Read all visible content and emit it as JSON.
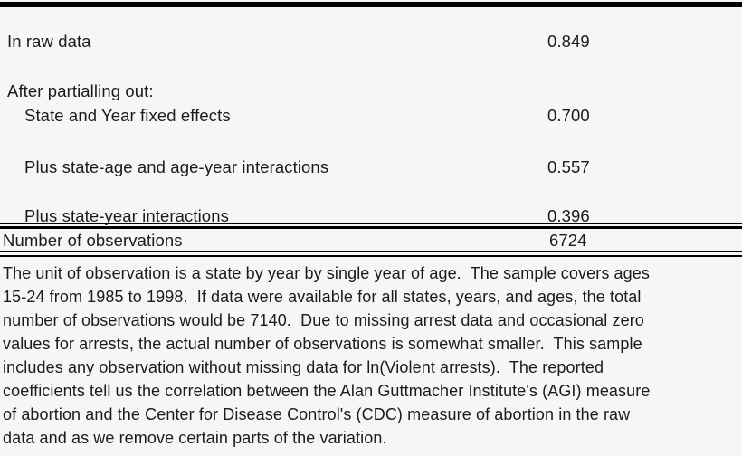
{
  "page": {
    "background_color": "#f6f6f6",
    "text_color": "#1b1b1b",
    "rule_color": "#000000"
  },
  "table": {
    "rows": [
      {
        "label": "In raw data",
        "value": "0.849",
        "indent": false
      },
      {
        "label": "After partialling out:",
        "value": "",
        "indent": false
      },
      {
        "label": "State and Year fixed effects",
        "value": "0.700",
        "indent": true
      },
      {
        "label": "Plus state-age and age-year interactions",
        "value": "0.557",
        "indent": true
      },
      {
        "label": "Plus state-year interactions",
        "value": "0.396",
        "indent": true
      },
      {
        "label": "Number of observations",
        "value": "6724",
        "indent": false
      }
    ]
  },
  "note": {
    "full_text": "The unit of observation is a state by year by single year of age.  The sample covers ages 15-24 from 1985 to 1998.  If data were available for all states, years, and ages, the total number of observations would be 7140.  Due to missing arrest data and occasional zero values for arrests, the actual number of observations is somewhat smaller.  This sample includes any observation without missing data for ln(Violent arrests).  The reported coefficients tell us the correlation between the Alan Guttmacher Institute's (AGI) measure of abortion and the Center for Disease Control's (CDC) measure of abortion in the raw data and as we remove certain parts of the variation.",
    "lines": [
      "The unit of observation is a state by year by single year of age.  The sample covers ages",
      "15-24 from 1985 to 1998.  If data were available for all states, years, and ages, the total",
      "number of observations would be 7140.  Due to missing arrest data and occasional zero",
      "values for arrests, the actual number of observations is somewhat smaller.  This sample",
      "includes any observation without missing data for ln(Violent arrests).  The reported",
      "coefficients tell us the correlation between the Alan Guttmacher Institute's (AGI) measure",
      "of abortion and the Center for Disease Control's (CDC) measure of abortion in the raw",
      "data and as we remove certain parts of the variation."
    ]
  }
}
